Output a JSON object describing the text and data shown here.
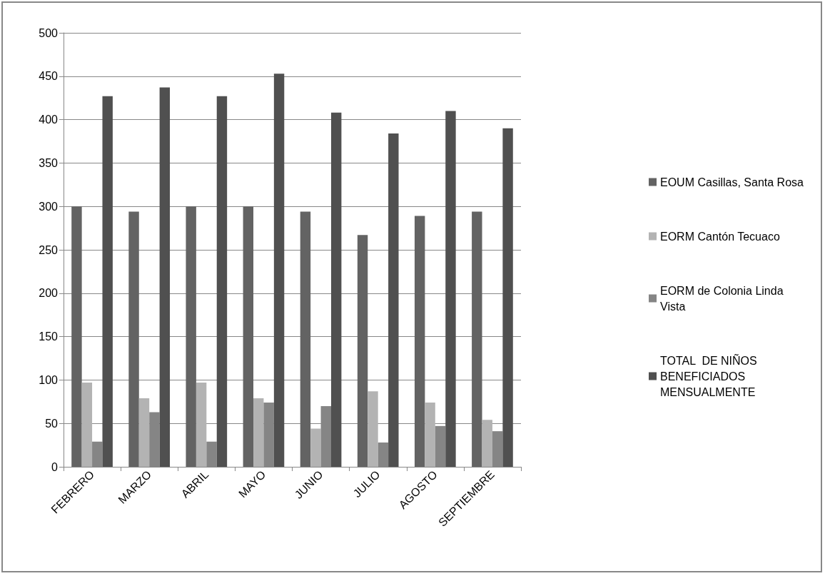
{
  "chart_data": {
    "type": "bar",
    "categories": [
      "FEBRERO",
      "MARZO",
      "ABRIL",
      "MAYO",
      "JUNIO",
      "JULIO",
      "AGOSTO",
      "SEPTIEMBRE"
    ],
    "series": [
      {
        "name": "EOUM Casillas, Santa Rosa",
        "color": "#636363",
        "values": [
          300,
          294,
          300,
          300,
          294,
          267,
          289,
          294
        ]
      },
      {
        "name": "EORM Cantón Tecuaco",
        "color": "#b3b3b3",
        "values": [
          97,
          79,
          97,
          79,
          44,
          87,
          74,
          54
        ]
      },
      {
        "name": "EORM de Colonia Linda Vista",
        "color": "#858585",
        "values": [
          29,
          63,
          29,
          74,
          70,
          28,
          47,
          41
        ]
      },
      {
        "name": "TOTAL  DE NIÑOS BENEFICIADOS MENSUALMENTE",
        "color": "#505050",
        "values": [
          427,
          437,
          427,
          453,
          408,
          384,
          410,
          390
        ]
      }
    ],
    "ylim": [
      0,
      500
    ],
    "yticks": [
      0,
      50,
      100,
      150,
      200,
      250,
      300,
      350,
      400,
      450,
      500
    ],
    "grid": "y",
    "legend": "right"
  }
}
